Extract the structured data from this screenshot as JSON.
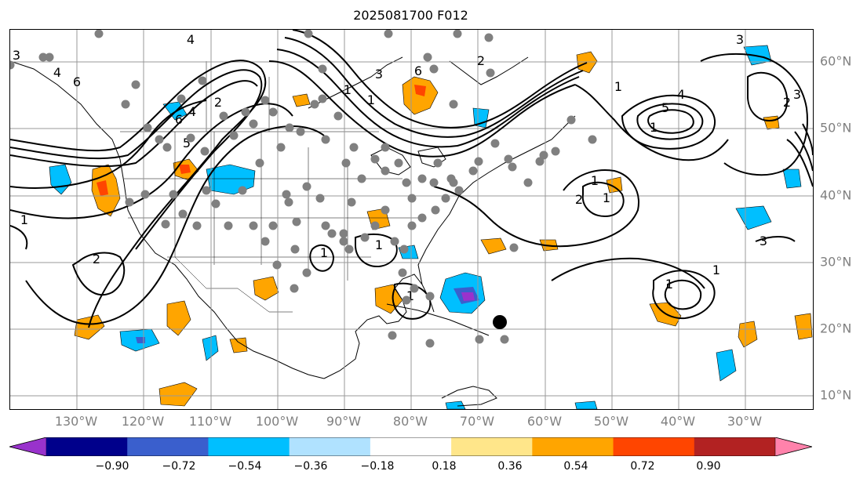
{
  "title": "2025081700 F012",
  "lon_labels": [
    "130°W",
    "120°W",
    "110°W",
    "100°W",
    "90°W",
    "80°W",
    "70°W",
    "60°W",
    "50°W",
    "40°W",
    "30°W"
  ],
  "lat_labels": [
    "60°N",
    "50°N",
    "40°N",
    "30°N",
    "20°N",
    "10°N"
  ],
  "colorbar": {
    "ticks": [
      "−0.90",
      "−0.72",
      "−0.54",
      "−0.36",
      "−0.18",
      "0.18",
      "0.36",
      "0.54",
      "0.72",
      "0.90"
    ],
    "colors": [
      "#9932cc",
      "#00008b",
      "#3a5fcd",
      "#00bfff",
      "#b0e2ff",
      "#ffffff",
      "#ffe68a",
      "#ffa500",
      "#ff4500",
      "#b22222",
      "#ff82ab"
    ]
  },
  "contour_labels": [
    "4",
    "3",
    "4",
    "6",
    "6",
    "5",
    "1",
    "1",
    "3",
    "2",
    "4",
    "1",
    "2",
    "6",
    "2",
    "3",
    "4",
    "5",
    "1",
    "1",
    "1",
    "2",
    "1",
    "2",
    "3",
    "3",
    "1",
    "1",
    "1",
    "1",
    "1"
  ],
  "colors": {
    "contour": "#000000",
    "grid": "#999999",
    "station": "#808080",
    "storm": "#000000"
  }
}
